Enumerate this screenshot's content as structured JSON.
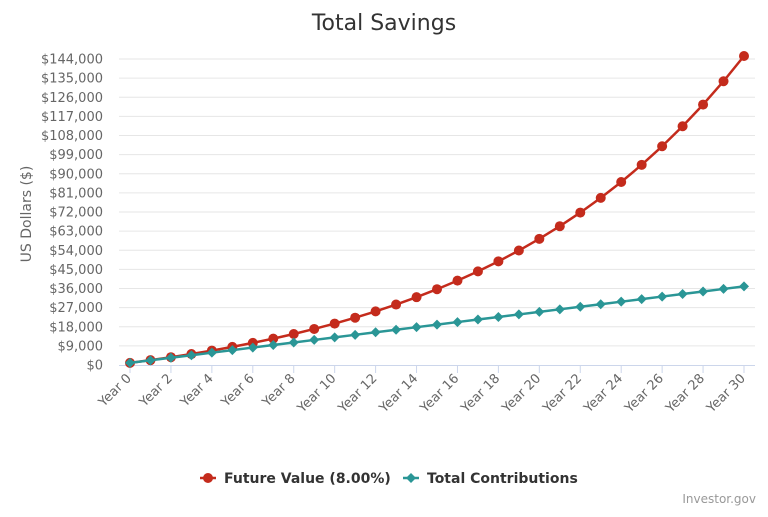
{
  "chart_data": {
    "type": "line",
    "title": "Total Savings",
    "ylabel": "US Dollars ($)",
    "xlabel": "",
    "ylim": [
      0,
      144000
    ],
    "yticks": [
      0,
      9000,
      18000,
      27000,
      36000,
      45000,
      54000,
      63000,
      72000,
      81000,
      90000,
      99000,
      108000,
      117000,
      126000,
      135000,
      144000
    ],
    "ytick_labels": [
      "$0",
      "$9,000",
      "$18,000",
      "$27,000",
      "$36,000",
      "$45,000",
      "$54,000",
      "$63,000",
      "$72,000",
      "$81,000",
      "$90,000",
      "$99,000",
      "$108,000",
      "$117,000",
      "$126,000",
      "$135,000",
      "$144,000"
    ],
    "categories": [
      "Year 0",
      "Year 1",
      "Year 2",
      "Year 3",
      "Year 4",
      "Year 5",
      "Year 6",
      "Year 7",
      "Year 8",
      "Year 9",
      "Year 10",
      "Year 11",
      "Year 12",
      "Year 13",
      "Year 14",
      "Year 15",
      "Year 16",
      "Year 17",
      "Year 18",
      "Year 19",
      "Year 20",
      "Year 21",
      "Year 22",
      "Year 23",
      "Year 24",
      "Year 25",
      "Year 26",
      "Year 27",
      "Year 28",
      "Year 29",
      "Year 30"
    ],
    "xtick_labels": [
      "Year 0",
      "Year 2",
      "Year 4",
      "Year 6",
      "Year 8",
      "Year 10",
      "Year 12",
      "Year 14",
      "Year 16",
      "Year 18",
      "Year 20",
      "Year 22",
      "Year 24",
      "Year 26",
      "Year 28",
      "Year 30"
    ],
    "series": [
      {
        "name": "Future Value (8.00%)",
        "color": "#c42b1c",
        "marker": "circle",
        "values": [
          1000,
          2280,
          3660,
          5160,
          6780,
          8520,
          10400,
          12420,
          14600,
          16960,
          19500,
          22260,
          25230,
          28450,
          31920,
          35660,
          39700,
          44060,
          48780,
          53870,
          59370,
          65310,
          71720,
          78640,
          86120,
          94200,
          102930,
          112360,
          122550,
          133540,
          145420
        ]
      },
      {
        "name": "Total Contributions",
        "color": "#2a9696",
        "marker": "diamond",
        "values": [
          1000,
          2200,
          3400,
          4600,
          5800,
          7000,
          8200,
          9400,
          10600,
          11800,
          13000,
          14200,
          15400,
          16600,
          17800,
          19000,
          20200,
          21400,
          22600,
          23800,
          25000,
          26200,
          27400,
          28600,
          29800,
          31000,
          32200,
          33400,
          34600,
          35800,
          37000
        ]
      }
    ],
    "legend_position": "bottom",
    "grid": true
  },
  "credit": "Investor.gov"
}
